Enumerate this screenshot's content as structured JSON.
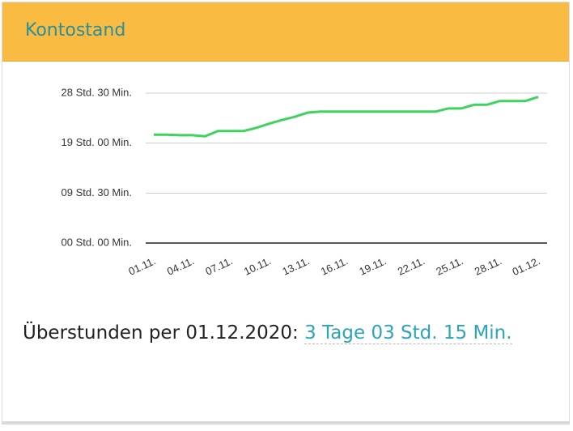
{
  "header": {
    "title": "Kontostand"
  },
  "chart_data": {
    "type": "line",
    "categories": [
      "01.11.",
      null,
      null,
      "04.11.",
      null,
      null,
      "07.11.",
      null,
      null,
      "10.11.",
      null,
      null,
      "13.11.",
      null,
      null,
      "16.11.",
      null,
      null,
      "19.11.",
      null,
      null,
      "22.11.",
      null,
      null,
      "25.11.",
      null,
      null,
      "28.11.",
      null,
      null,
      "01.12."
    ],
    "series": [
      {
        "color": "#3dd35c",
        "values": [
          20.6,
          20.6,
          20.5,
          20.5,
          20.3,
          21.3,
          21.3,
          21.3,
          21.9,
          22.7,
          23.4,
          24.0,
          24.8,
          25.0,
          25.0,
          25.0,
          25.0,
          25.0,
          25.0,
          25.0,
          25.0,
          25.0,
          25.0,
          25.6,
          25.6,
          26.3,
          26.3,
          27.0,
          27.0,
          27.0,
          27.8
        ]
      }
    ],
    "ylim": [
      0,
      28.5
    ],
    "yticks": [
      {
        "value": 0,
        "label": "00 Std. 00 Min."
      },
      {
        "value": 9.5,
        "label": "09 Std. 30 Min."
      },
      {
        "value": 19,
        "label": "19 Std. 00 Min."
      },
      {
        "value": 28.5,
        "label": "28 Std. 30 Min."
      }
    ],
    "grid": true
  },
  "footer": {
    "label": "Überstunden per 01.12.2020:",
    "value": "3 Tage 03 Std. 15 Min."
  }
}
